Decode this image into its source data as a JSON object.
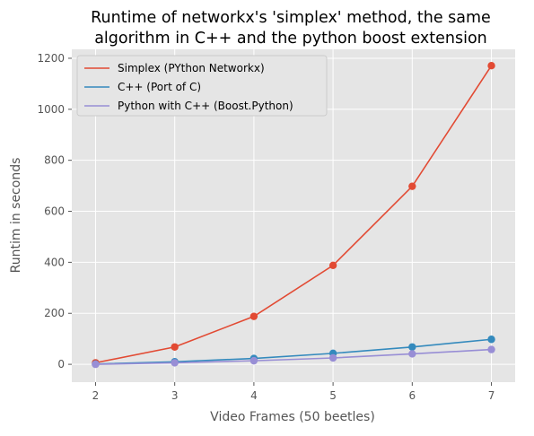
{
  "chart_data": {
    "type": "line",
    "title": [
      "Runtime of networkx's 'simplex' method, the same",
      "algorithm in C++ and the python boost extension"
    ],
    "xlabel": "Video Frames (50 beetles)",
    "ylabel": "Runtim in seconds",
    "x": [
      2,
      3,
      4,
      5,
      6,
      7
    ],
    "xlim": [
      1.7,
      7.3
    ],
    "ylim": [
      -70,
      1235
    ],
    "xticks": [
      2,
      3,
      4,
      5,
      6,
      7
    ],
    "yticks": [
      0,
      200,
      400,
      600,
      800,
      1000,
      1200
    ],
    "grid": true,
    "legend_position": "top-left",
    "series": [
      {
        "name": "Simplex (PYthon Networkx)",
        "color": "#E24A33",
        "values": [
          6,
          68,
          188,
          388,
          698,
          1171
        ]
      },
      {
        "name": "C++ (Port of C)",
        "color": "#348ABD",
        "values": [
          1,
          10,
          23,
          43,
          68,
          98
        ]
      },
      {
        "name": "Python with C++ (Boost.Python)",
        "color": "#988ED5",
        "values": [
          0,
          6,
          14,
          25,
          41,
          58
        ]
      }
    ]
  }
}
